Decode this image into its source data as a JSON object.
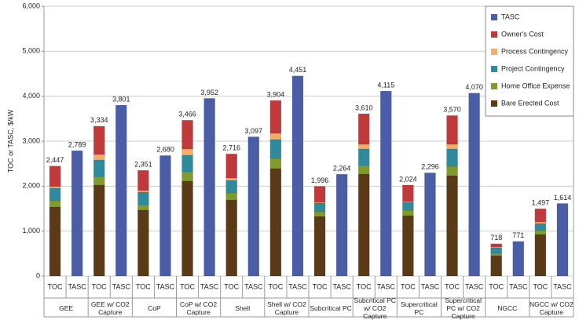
{
  "chart_data": {
    "type": "stacked_bar",
    "y_label": "TOC or TASC, $/kW",
    "ylim": [
      0,
      6000
    ],
    "yticks": [
      0,
      {
        "value": 1000,
        "label": "1,000"
      },
      {
        "value": 2000,
        "label": "2,000"
      },
      {
        "value": 3000,
        "label": "3,000"
      },
      {
        "value": 4000,
        "label": "4,000"
      },
      {
        "value": 5000,
        "label": "5,000"
      },
      {
        "value": 6000,
        "label": "6,000"
      }
    ],
    "grid": true,
    "legend": "top-right",
    "groups": [
      "GEE",
      "GEE w/ CO2 Capture",
      "CoP",
      "CoP w/ CO2 Capture",
      "Shell",
      "Shell w/ CO2 Capture",
      "Subcritical PC",
      "Subcritical PC w/ CO2 Capture",
      "Supercritical PC",
      "Supercritical PC w/ CO2 Capture",
      "NGCC",
      "NGCC w/ CO2 Capture"
    ],
    "categories": [
      "TOC",
      "TASC",
      "TOC",
      "TASC",
      "TOC",
      "TASC",
      "TOC",
      "TASC",
      "TOC",
      "TASC",
      "TOC",
      "TASC",
      "TOC",
      "TASC",
      "TOC",
      "TASC",
      "TOC",
      "TASC",
      "TOC",
      "TASC",
      "TOC",
      "TASC",
      "TOC",
      "TASC"
    ],
    "series": [
      {
        "name": "Bare Erected Cost",
        "color": "#5a3a17",
        "values": [
          1535,
          null,
          2023,
          null,
          1465,
          null,
          2111,
          null,
          1692,
          null,
          2390,
          null,
          1326,
          null,
          2268,
          null,
          1343,
          null,
          2233,
          null,
          453,
          null,
          925,
          null
        ]
      },
      {
        "name": "Home Office Expense",
        "color": "#7f9a2f",
        "values": [
          140,
          null,
          192,
          null,
          122,
          null,
          209,
          null,
          157,
          null,
          226,
          null,
          104,
          null,
          191,
          null,
          122,
          null,
          209,
          null,
          53,
          null,
          87,
          null
        ]
      },
      {
        "name": "Project Contingency",
        "color": "#2f8a9c",
        "values": [
          278,
          null,
          366,
          null,
          279,
          null,
          366,
          null,
          279,
          null,
          419,
          null,
          192,
          null,
          367,
          null,
          175,
          null,
          384,
          null,
          122,
          null,
          157,
          null
        ]
      },
      {
        "name": "Process Contingency",
        "color": "#f4ad68",
        "values": [
          37,
          null,
          123,
          null,
          35,
          null,
          140,
          null,
          52,
          null,
          139,
          null,
          18,
          null,
          104,
          null,
          17,
          null,
          104,
          null,
          17,
          null,
          35,
          null
        ]
      },
      {
        "name": "Owner's Cost",
        "color": "#c03a3c",
        "values": [
          457,
          null,
          630,
          null,
          450,
          null,
          640,
          null,
          536,
          null,
          730,
          null,
          356,
          null,
          680,
          null,
          367,
          null,
          640,
          null,
          73,
          null,
          293,
          null
        ]
      },
      {
        "name": "TASC",
        "color": "#4b5da6",
        "values": [
          null,
          2789,
          null,
          3801,
          null,
          2680,
          null,
          3952,
          null,
          3097,
          null,
          4451,
          null,
          2264,
          null,
          4115,
          null,
          2296,
          null,
          4070,
          null,
          771,
          null,
          1614
        ],
        "value_labels": [
          null,
          "2,789",
          null,
          "3,801",
          null,
          "2,680",
          null,
          "3,952",
          null,
          "3,097",
          null,
          "4,451",
          null,
          "2,264",
          null,
          "4,115",
          null,
          "2,296",
          null,
          "4,070",
          null,
          "771",
          null,
          "1,614"
        ]
      }
    ],
    "toc_totals": [
      2447,
      null,
      3334,
      null,
      2351,
      null,
      3466,
      null,
      2716,
      null,
      3904,
      null,
      1996,
      null,
      3610,
      null,
      2024,
      null,
      3570,
      null,
      718,
      null,
      1497,
      null
    ],
    "toc_total_labels": [
      "2,447",
      null,
      "3,334",
      null,
      "2,351",
      null,
      "3,466",
      null,
      "2,716",
      null,
      "3,904",
      null,
      "1,996",
      null,
      "3,610",
      null,
      "2,024",
      null,
      "3,570",
      null,
      "718",
      null,
      "1,497",
      null
    ]
  }
}
